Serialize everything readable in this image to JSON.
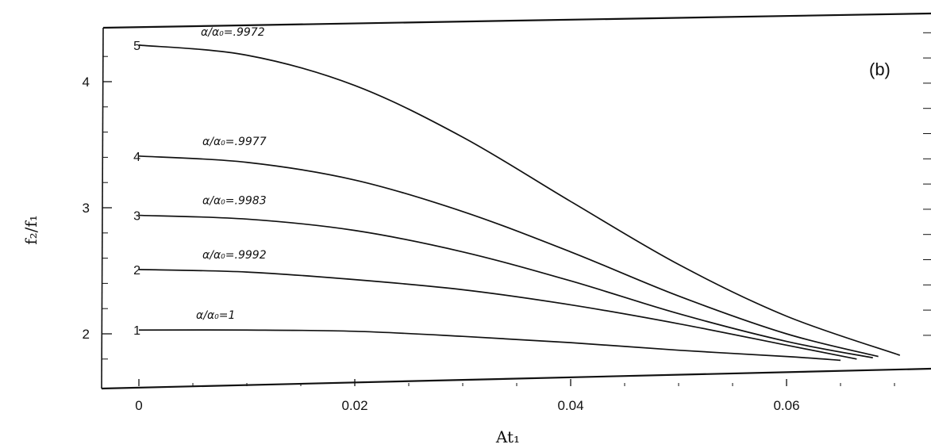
{
  "chart_data": {
    "type": "line",
    "panel_label": "(b)",
    "xlabel": "At₁",
    "ylabel": "f₂/f₁",
    "xlim": [
      -0.0035,
      0.0735
    ],
    "ylim": [
      1.75,
      4.45
    ],
    "x_ticks": [
      {
        "value": 0,
        "label": "0"
      },
      {
        "value": 0.02,
        "label": "0.02"
      },
      {
        "value": 0.04,
        "label": "0.04"
      },
      {
        "value": 0.06,
        "label": "0.06"
      }
    ],
    "y_ticks": [
      {
        "value": 2,
        "label": "2"
      },
      {
        "value": 3,
        "label": "3"
      },
      {
        "value": 4,
        "label": "4"
      }
    ],
    "grid": false,
    "legend": "none",
    "series": [
      {
        "number": "1",
        "name": "α/α₀=1",
        "x": [
          0,
          0.01,
          0.02,
          0.03,
          0.04,
          0.05,
          0.06,
          0.065
        ],
        "y": [
          2.03,
          2.03,
          2.02,
          1.98,
          1.93,
          1.87,
          1.82,
          1.79
        ]
      },
      {
        "number": "2",
        "name": "α/α₀=.9992",
        "x": [
          0,
          0.01,
          0.02,
          0.03,
          0.04,
          0.05,
          0.06,
          0.0665
        ],
        "y": [
          2.51,
          2.49,
          2.43,
          2.35,
          2.23,
          2.08,
          1.91,
          1.8
        ]
      },
      {
        "number": "3",
        "name": "α/α₀=.9983",
        "x": [
          0,
          0.01,
          0.02,
          0.03,
          0.04,
          0.05,
          0.06,
          0.068
        ],
        "y": [
          2.94,
          2.91,
          2.82,
          2.65,
          2.42,
          2.16,
          1.94,
          1.81
        ]
      },
      {
        "number": "4",
        "name": "α/α₀=.9977",
        "x": [
          0,
          0.01,
          0.02,
          0.03,
          0.04,
          0.05,
          0.06,
          0.0685
        ],
        "y": [
          3.41,
          3.36,
          3.22,
          2.97,
          2.65,
          2.3,
          2.0,
          1.82
        ]
      },
      {
        "number": "5",
        "name": "α/α₀=.9972",
        "x": [
          0,
          0.01,
          0.02,
          0.03,
          0.04,
          0.05,
          0.06,
          0.0705
        ],
        "y": [
          4.29,
          4.21,
          3.97,
          3.56,
          3.05,
          2.55,
          2.14,
          1.83
        ]
      }
    ]
  }
}
